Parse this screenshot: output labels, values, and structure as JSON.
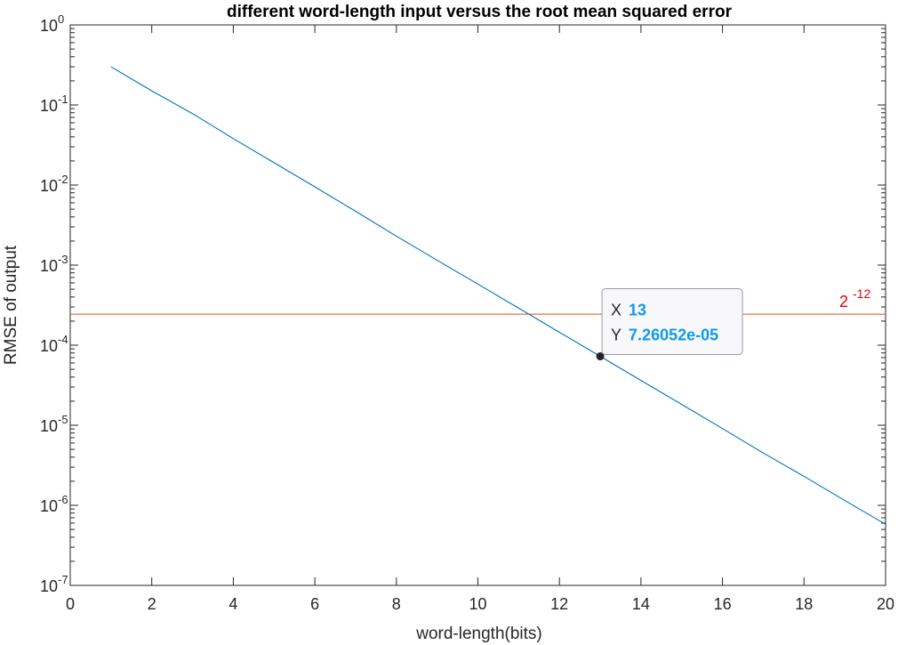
{
  "chart_data": {
    "type": "line",
    "title": "different word-length input versus the root mean squared error",
    "xlabel": "word-length(bits)",
    "ylabel": "RMSE of output",
    "xlim": [
      0,
      20
    ],
    "ylim": [
      1e-07,
      1
    ],
    "y_scale": "log",
    "x_ticks": [
      "0",
      "2",
      "4",
      "6",
      "8",
      "10",
      "12",
      "14",
      "16",
      "18",
      "20"
    ],
    "y_ticks": [
      {
        "base": "10",
        "exp": "0"
      },
      {
        "base": "10",
        "exp": "-1"
      },
      {
        "base": "10",
        "exp": "-2"
      },
      {
        "base": "10",
        "exp": "-3"
      },
      {
        "base": "10",
        "exp": "-4"
      },
      {
        "base": "10",
        "exp": "-5"
      },
      {
        "base": "10",
        "exp": "-6"
      },
      {
        "base": "10",
        "exp": "-7"
      }
    ],
    "grid": false,
    "series": [
      {
        "color": "#0072BD",
        "x": [
          1,
          2,
          3,
          4,
          5,
          6,
          7,
          8,
          9,
          10,
          11,
          12,
          13,
          14,
          15,
          16,
          17,
          18,
          19,
          20
        ],
        "y": [
          0.3,
          0.15,
          0.078,
          0.038,
          0.019,
          0.0095,
          0.0047,
          0.0023,
          0.00115,
          0.00058,
          0.00029,
          0.000145,
          7.26052e-05,
          3.63e-05,
          1.82e-05,
          9.1e-06,
          4.5e-06,
          2.3e-06,
          1.15e-06,
          5.8e-07
        ]
      }
    ],
    "reference_line": {
      "y": 0.000244140625,
      "color": "#D95319",
      "label_base": "2",
      "label_exp": "-12",
      "label_color": "#E60000"
    },
    "datatip": {
      "x": 13,
      "y": 7.26052e-05,
      "x_key": "X",
      "y_key": "Y",
      "x_text": "13",
      "y_text": "7.26052e-05",
      "value_color": "#0E9BE6"
    }
  }
}
